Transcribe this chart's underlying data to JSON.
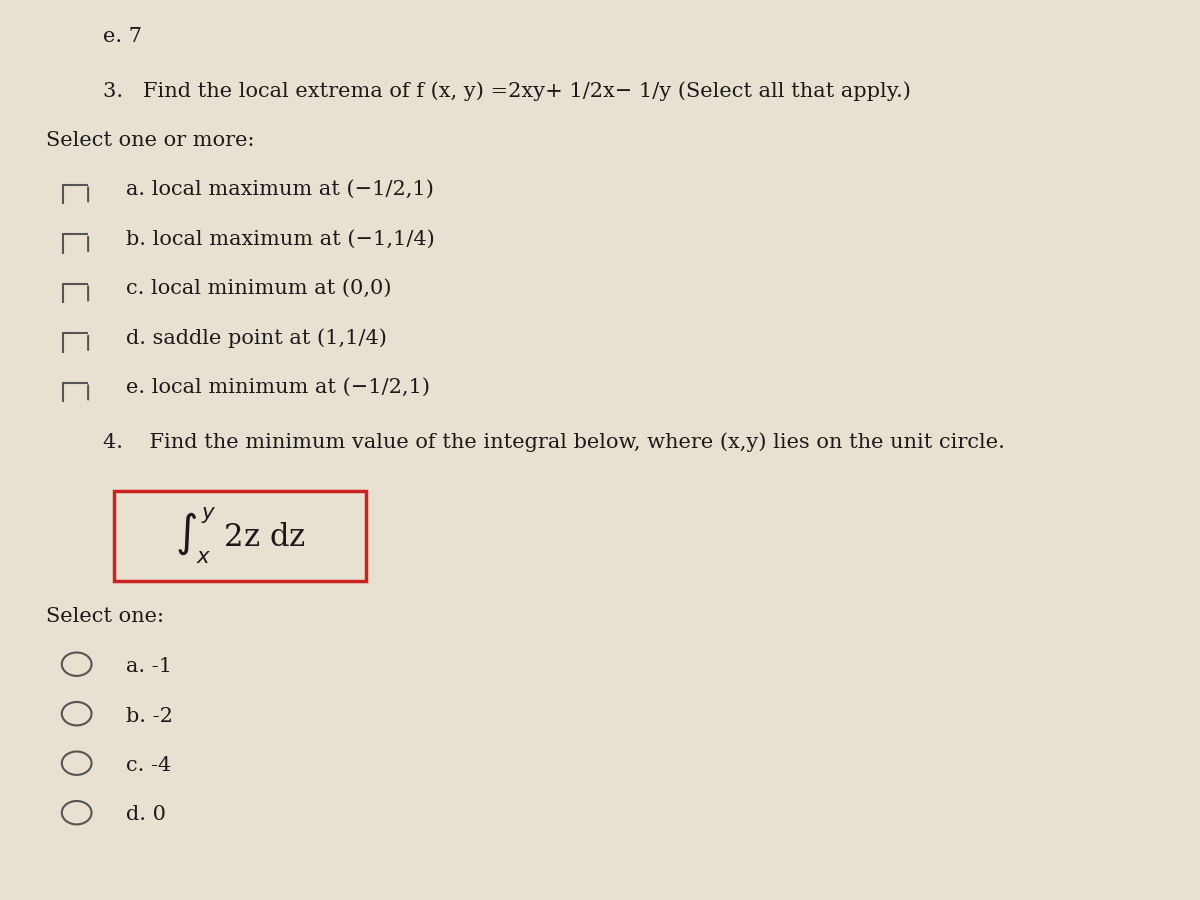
{
  "background_color": "#e8e0d0",
  "text_color": "#1a1a1a",
  "title_e": "e. 7",
  "q3_header": "3.   Find the local extrema of f (x, y) =2xy+ 1/2x− 1/y (Select all that apply.)",
  "q3_subheader": "Select one or more:",
  "q3_options": [
    "a. local maximum at (−1/2,1)",
    "b. local maximum at (−1,1/4)",
    "c. local minimum at (0,0)",
    "d. saddle point at (1,1/4)",
    "e. local minimum at (−1/2,1)"
  ],
  "q4_header": "4.    Find the minimum value of the integral below, where (x,y) lies on the unit circle.",
  "integral_text": "$\\int_{x}^{y}$ 2z dz",
  "q4_subheader": "Select one:",
  "q4_options": [
    "a. -1",
    "b. -2",
    "c. -4",
    "d. 0"
  ],
  "checkbox_color": "#555555",
  "radio_color": "#555555",
  "box_border_color": "#cc2222",
  "font_size_main": 15,
  "font_size_header": 15,
  "font_size_integral": 22
}
